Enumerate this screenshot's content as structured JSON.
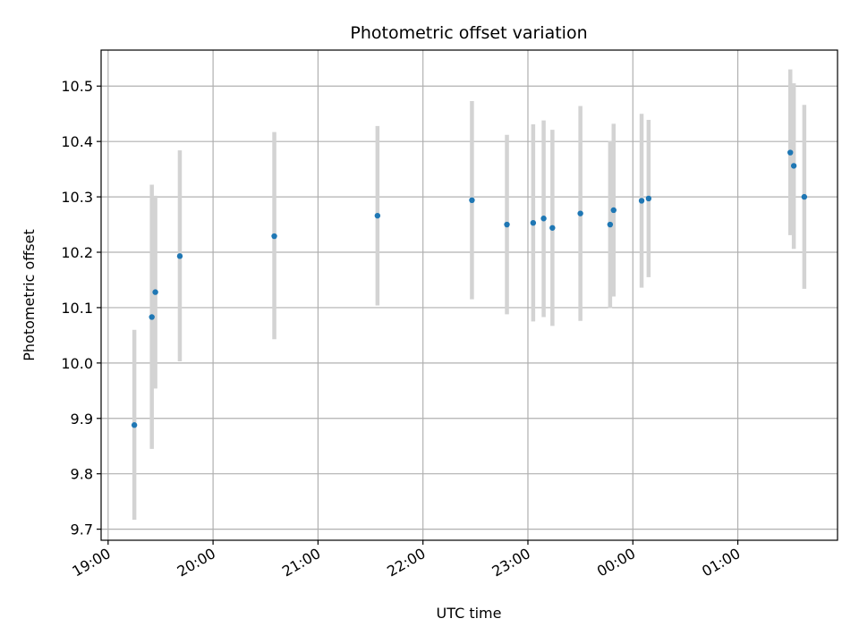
{
  "chart_data": {
    "type": "scatter",
    "title": "Photometric offset variation",
    "xlabel": "UTC time",
    "ylabel": "Photometric offset",
    "x_ticks": [
      "19:00",
      "20:00",
      "21:00",
      "22:00",
      "23:00",
      "00:00",
      "01:00"
    ],
    "y_ticks": [
      "9.7",
      "9.8",
      "9.9",
      "10.0",
      "10.1",
      "10.2",
      "10.3",
      "10.4",
      "10.5"
    ],
    "xlim": [
      "18:56",
      "01:57"
    ],
    "ylim": [
      9.68,
      10.565
    ],
    "grid": true,
    "colors": {
      "points": "#1f77b4",
      "errorbars": "#d3d3d3",
      "grid": "#b0b0b0"
    },
    "points": [
      {
        "x": "19:15",
        "y": 9.888,
        "ylo": 9.717,
        "yhi": 10.06
      },
      {
        "x": "19:25",
        "y": 10.083,
        "ylo": 9.845,
        "yhi": 10.322
      },
      {
        "x": "19:27",
        "y": 10.128,
        "ylo": 9.954,
        "yhi": 10.302
      },
      {
        "x": "19:41",
        "y": 10.193,
        "ylo": 10.003,
        "yhi": 10.384
      },
      {
        "x": "20:35",
        "y": 10.229,
        "ylo": 10.043,
        "yhi": 10.417
      },
      {
        "x": "21:34",
        "y": 10.266,
        "ylo": 10.104,
        "yhi": 10.428
      },
      {
        "x": "22:28",
        "y": 10.294,
        "ylo": 10.115,
        "yhi": 10.473
      },
      {
        "x": "22:48",
        "y": 10.25,
        "ylo": 10.088,
        "yhi": 10.412
      },
      {
        "x": "23:03",
        "y": 10.253,
        "ylo": 10.075,
        "yhi": 10.431
      },
      {
        "x": "23:09",
        "y": 10.261,
        "ylo": 10.083,
        "yhi": 10.438
      },
      {
        "x": "23:14",
        "y": 10.244,
        "ylo": 10.067,
        "yhi": 10.421
      },
      {
        "x": "23:30",
        "y": 10.27,
        "ylo": 10.076,
        "yhi": 10.464
      },
      {
        "x": "23:47",
        "y": 10.25,
        "ylo": 10.099,
        "yhi": 10.401
      },
      {
        "x": "23:49",
        "y": 10.276,
        "ylo": 10.12,
        "yhi": 10.432
      },
      {
        "x": "00:05",
        "y": 10.293,
        "ylo": 10.136,
        "yhi": 10.45
      },
      {
        "x": "00:09",
        "y": 10.297,
        "ylo": 10.155,
        "yhi": 10.439
      },
      {
        "x": "01:30",
        "y": 10.38,
        "ylo": 10.231,
        "yhi": 10.53
      },
      {
        "x": "01:32",
        "y": 10.356,
        "ylo": 10.206,
        "yhi": 10.505
      },
      {
        "x": "01:38",
        "y": 10.3,
        "ylo": 10.134,
        "yhi": 10.466
      }
    ]
  }
}
